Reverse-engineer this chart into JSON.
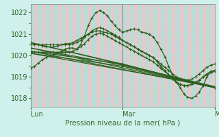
{
  "bg_color": "#cff0eb",
  "grid_color_h": "#b8ddd8",
  "grid_color_v_pink": "#e8c8c8",
  "grid_color_v_teal": "#b8ddd8",
  "line_color": "#2d6020",
  "marker_color": "#2d6020",
  "xlabel": "Pression niveau de la mer( hPa )",
  "xlabel_color": "#2d6020",
  "tick_color": "#2d6020",
  "spine_color": "#888888",
  "ylim": [
    1017.6,
    1022.4
  ],
  "yticks": [
    1018,
    1019,
    1020,
    1021,
    1022
  ],
  "day_labels": [
    "Lun",
    "Mar",
    "Mer"
  ],
  "day_positions": [
    0.0,
    0.5,
    1.0
  ],
  "n_points": 49,
  "series": [
    {
      "x": [
        0.0,
        0.021,
        0.042,
        0.063,
        0.083,
        0.104,
        0.125,
        0.146,
        0.167,
        0.188,
        0.208,
        0.229,
        0.25,
        0.271,
        0.292,
        0.313,
        0.333,
        0.354,
        0.375,
        0.396,
        0.417,
        0.438,
        0.458,
        0.479,
        0.5,
        0.521,
        0.542,
        0.563,
        0.583,
        0.604,
        0.625,
        0.646,
        0.667,
        0.688,
        0.708,
        0.729,
        0.75,
        0.771,
        0.792,
        0.813,
        0.833,
        0.854,
        0.875,
        0.896,
        0.917,
        0.938,
        0.958,
        0.979,
        1.0
      ],
      "y": [
        1019.4,
        1019.5,
        1019.65,
        1019.8,
        1019.9,
        1020.0,
        1020.05,
        1020.1,
        1020.2,
        1020.3,
        1020.35,
        1020.35,
        1020.3,
        1020.5,
        1020.9,
        1021.4,
        1021.75,
        1022.0,
        1022.1,
        1022.0,
        1021.85,
        1021.6,
        1021.4,
        1021.2,
        1021.1,
        1021.15,
        1021.2,
        1021.25,
        1021.2,
        1021.1,
        1021.05,
        1021.0,
        1020.85,
        1020.6,
        1020.3,
        1019.95,
        1019.5,
        1019.1,
        1018.75,
        1018.5,
        1018.2,
        1018.05,
        1018.0,
        1018.1,
        1018.3,
        1018.6,
        1019.0,
        1019.25,
        1019.3
      ]
    },
    {
      "x": [
        0.0,
        0.021,
        0.042,
        0.063,
        0.083,
        0.104,
        0.125,
        0.146,
        0.167,
        0.188,
        0.208,
        0.229,
        0.25,
        0.271,
        0.292,
        0.313,
        0.333,
        0.354,
        0.375,
        0.396,
        0.417,
        0.438,
        0.458,
        0.479,
        0.5,
        0.521,
        0.542,
        0.563,
        0.583,
        0.604,
        0.625,
        0.646,
        0.667,
        0.688,
        0.708,
        0.729,
        0.75,
        0.771,
        0.792,
        0.813,
        0.833,
        0.854,
        0.875,
        0.896,
        0.917,
        0.938,
        0.958,
        0.979,
        1.0
      ],
      "y": [
        1020.5,
        1020.5,
        1020.5,
        1020.5,
        1020.5,
        1020.5,
        1020.5,
        1020.5,
        1020.5,
        1020.5,
        1020.5,
        1020.55,
        1020.6,
        1020.7,
        1020.85,
        1021.0,
        1021.15,
        1021.25,
        1021.3,
        1021.25,
        1021.15,
        1021.05,
        1020.95,
        1020.85,
        1020.7,
        1020.6,
        1020.5,
        1020.4,
        1020.3,
        1020.2,
        1020.1,
        1020.0,
        1019.9,
        1019.7,
        1019.5,
        1019.3,
        1019.1,
        1018.9,
        1018.75,
        1018.65,
        1018.6,
        1018.6,
        1018.65,
        1018.75,
        1018.85,
        1019.0,
        1019.15,
        1019.25,
        1019.3
      ]
    },
    {
      "x": [
        0.0,
        0.021,
        0.042,
        0.063,
        0.083,
        0.104,
        0.125,
        0.146,
        0.167,
        0.188,
        0.208,
        0.229,
        0.25,
        0.271,
        0.292,
        0.313,
        0.333,
        0.354,
        0.375,
        0.396,
        0.417,
        0.438,
        0.458,
        0.479,
        0.5,
        0.521,
        0.542,
        0.563,
        0.583,
        0.604,
        0.625,
        0.646,
        0.667,
        0.688,
        0.708,
        0.729,
        0.75,
        0.771,
        0.792,
        0.813,
        0.833,
        0.854,
        0.875,
        0.896,
        0.917,
        0.938,
        0.958,
        0.979,
        1.0
      ],
      "y": [
        1020.15,
        1020.15,
        1020.15,
        1020.15,
        1020.15,
        1020.15,
        1020.15,
        1020.15,
        1020.15,
        1020.15,
        1020.15,
        1020.2,
        1020.3,
        1020.4,
        1020.55,
        1020.75,
        1020.9,
        1021.0,
        1021.05,
        1021.0,
        1020.9,
        1020.8,
        1020.7,
        1020.6,
        1020.5,
        1020.4,
        1020.3,
        1020.2,
        1020.1,
        1020.0,
        1019.9,
        1019.8,
        1019.7,
        1019.55,
        1019.4,
        1019.25,
        1019.1,
        1018.9,
        1018.75,
        1018.65,
        1018.6,
        1018.6,
        1018.65,
        1018.75,
        1018.85,
        1019.0,
        1019.1,
        1019.2,
        1019.25
      ]
    },
    {
      "x": [
        0.0,
        0.021,
        0.042,
        0.063,
        0.083,
        0.104,
        0.125,
        0.146,
        0.167,
        0.188,
        0.208,
        0.229,
        0.25,
        0.271,
        0.292,
        0.313,
        0.333,
        0.354,
        0.375,
        0.396,
        0.417,
        0.438,
        0.458,
        0.479,
        0.5,
        0.521,
        0.542,
        0.563,
        0.583,
        0.604,
        0.625,
        0.646,
        0.667,
        0.688,
        0.708,
        0.729,
        0.75,
        0.771,
        0.792,
        0.813,
        0.833,
        0.854,
        0.875,
        0.896,
        0.917,
        0.938,
        0.958,
        0.979,
        1.0
      ],
      "y": [
        1020.6,
        1020.55,
        1020.5,
        1020.45,
        1020.4,
        1020.4,
        1020.4,
        1020.45,
        1020.5,
        1020.55,
        1020.55,
        1020.6,
        1020.7,
        1020.8,
        1020.9,
        1021.0,
        1021.1,
        1021.15,
        1021.15,
        1021.1,
        1021.05,
        1021.0,
        1020.9,
        1020.8,
        1020.7,
        1020.6,
        1020.5,
        1020.4,
        1020.3,
        1020.2,
        1020.1,
        1020.0,
        1019.9,
        1019.75,
        1019.6,
        1019.45,
        1019.3,
        1019.15,
        1019.0,
        1018.9,
        1018.85,
        1018.85,
        1018.9,
        1019.0,
        1019.15,
        1019.3,
        1019.45,
        1019.55,
        1019.6
      ]
    },
    {
      "x": [
        0.0,
        0.5,
        1.0
      ],
      "y": [
        1020.2,
        1019.6,
        1018.5
      ]
    },
    {
      "x": [
        0.0,
        0.5,
        1.0
      ],
      "y": [
        1020.35,
        1019.55,
        1018.5
      ]
    },
    {
      "x": [
        0.0,
        0.5,
        1.0
      ],
      "y": [
        1020.1,
        1019.5,
        1018.5
      ]
    },
    {
      "x": [
        0.0,
        0.5,
        1.0
      ],
      "y": [
        1020.6,
        1019.6,
        1018.5
      ]
    }
  ],
  "straight_series": [
    {
      "x": [
        0.0,
        1.0
      ],
      "y": [
        1020.2,
        1018.5
      ]
    },
    {
      "x": [
        0.0,
        1.0
      ],
      "y": [
        1020.35,
        1018.5
      ]
    },
    {
      "x": [
        0.0,
        1.0
      ],
      "y": [
        1020.1,
        1018.55
      ]
    },
    {
      "x": [
        0.0,
        1.0
      ],
      "y": [
        1020.6,
        1018.55
      ]
    }
  ]
}
